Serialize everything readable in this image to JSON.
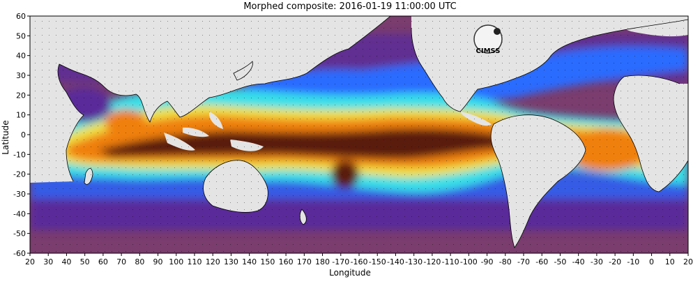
{
  "map": {
    "title": "Morphed composite: 2016-01-19 11:00:00 UTC",
    "xlabel": "Longitude",
    "ylabel": "Latitude",
    "x_ticks": [
      "20",
      "30",
      "40",
      "50",
      "60",
      "70",
      "80",
      "90",
      "100",
      "110",
      "120",
      "130",
      "140",
      "150",
      "160",
      "170",
      "180",
      "-170",
      "-160",
      "-150",
      "-140",
      "-130",
      "-120",
      "-110",
      "-100",
      "-90",
      "-80",
      "-70",
      "-60",
      "-50",
      "-40",
      "-30",
      "-20",
      "-10",
      "0",
      "10",
      "20"
    ],
    "y_ticks": [
      "60",
      "50",
      "40",
      "30",
      "20",
      "10",
      "0",
      "-10",
      "-20",
      "-30",
      "-40",
      "-50",
      "-60"
    ],
    "logo_text": "CIMSS",
    "colors": {
      "land": "#e4e4e4",
      "dry": "#7a3d6e",
      "low": "#5a2a9a",
      "blue": "#2a6cff",
      "cyan": "#37e0e8",
      "green": "#90f070",
      "yellow": "#f0e040",
      "orange": "#f08010",
      "high": "#a03010",
      "extreme": "#5a1a08"
    }
  }
}
